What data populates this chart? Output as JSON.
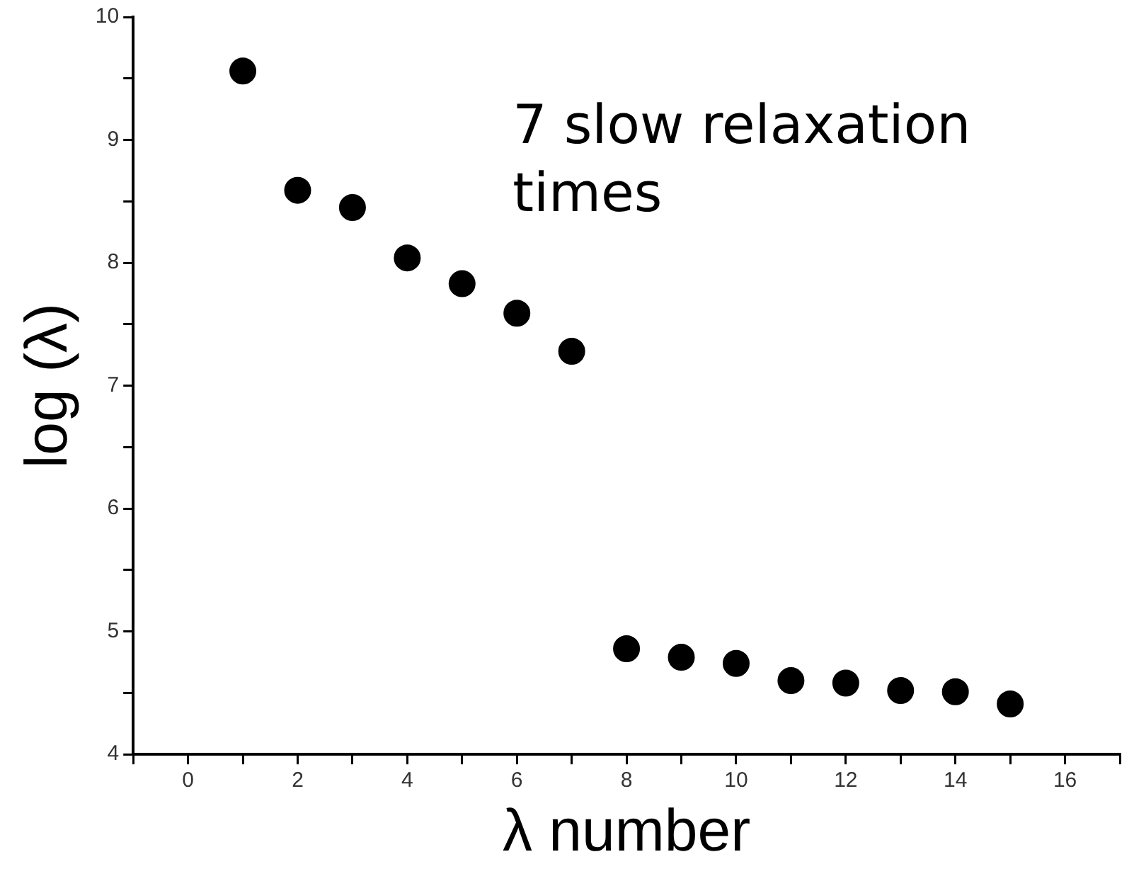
{
  "chart_data": {
    "type": "scatter",
    "xlabel": "λ number",
    "ylabel": "log (λ)",
    "annotations": [
      "7 slow relaxation times"
    ],
    "x": [
      1,
      2,
      3,
      4,
      5,
      6,
      7,
      8,
      9,
      10,
      11,
      12,
      13,
      14,
      15
    ],
    "series": [
      {
        "color": "#000000",
        "values": [
          9.56,
          8.59,
          8.45,
          8.04,
          7.83,
          7.59,
          7.28,
          4.86,
          4.79,
          4.74,
          4.6,
          4.58,
          4.52,
          4.51,
          4.41
        ]
      }
    ],
    "xlim": [
      -1,
      17
    ],
    "xticks": [
      {
        "value": -1,
        "label": null
      },
      0,
      {
        "value": 1,
        "label": null
      },
      2,
      {
        "value": 3,
        "label": null
      },
      4,
      {
        "value": 5,
        "label": null
      },
      6,
      {
        "value": 7,
        "label": null
      },
      8,
      {
        "value": 9,
        "label": null
      },
      10,
      {
        "value": 11,
        "label": null
      },
      12,
      {
        "value": 13,
        "label": null
      },
      14,
      {
        "value": 15,
        "label": null
      },
      16,
      {
        "value": 17,
        "label": null
      }
    ],
    "ylim": [
      4,
      10
    ],
    "yticks": [
      4,
      {
        "value": 4.5,
        "label": null
      },
      5,
      {
        "value": 5.5,
        "label": null
      },
      6,
      {
        "value": 6.5,
        "label": null
      },
      7,
      {
        "value": 7.5,
        "label": null
      },
      8,
      {
        "value": 8.5,
        "label": null
      },
      9,
      {
        "value": 9.5,
        "label": null
      },
      10
    ],
    "grid": false,
    "legend": false,
    "marker": "circle"
  }
}
